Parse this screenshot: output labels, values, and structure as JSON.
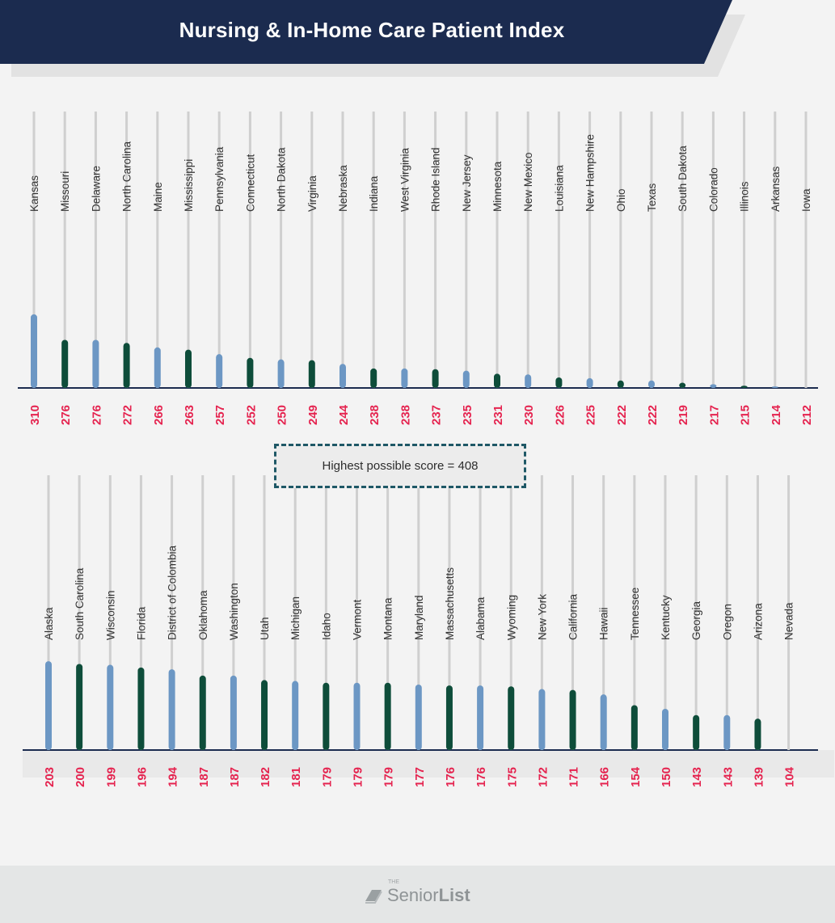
{
  "title": "Nursing & In-Home Care Patient Index",
  "callout": "Highest possible score = 408",
  "brand": {
    "prefix": "THE",
    "name_regular": "Senior",
    "name_bold": "List"
  },
  "colors": {
    "banner": "#1b2b4f",
    "bar_blue": "#6c97c4",
    "bar_green": "#0e4d3a",
    "value_red": "#e5234f",
    "stem": "#cfcfcf"
  },
  "chart_data": [
    {
      "type": "bar",
      "categories": [
        "Kansas",
        "Missouri",
        "Delaware",
        "North Carolina",
        "Maine",
        "Mississippi",
        "Pennsylvania",
        "Connecticut",
        "North Dakota",
        "Virginia",
        "Nebraska",
        "Indiana",
        "West Virginia",
        "Rhode Island",
        "New Jersey",
        "Minnesota",
        "New Mexico",
        "Louisiana",
        "New Hampshire",
        "Ohio",
        "Texas",
        "South Dakota",
        "Colorado",
        "Illinois",
        "Arkansas",
        "Iowa"
      ],
      "values": [
        310,
        276,
        276,
        272,
        266,
        263,
        257,
        252,
        250,
        249,
        244,
        238,
        238,
        237,
        235,
        231,
        230,
        226,
        225,
        222,
        222,
        219,
        217,
        215,
        214,
        212
      ]
    },
    {
      "type": "bar",
      "categories": [
        "Alaska",
        "South Carolina",
        "Wisconsin",
        "Florida",
        "District of Colombia",
        "Oklahoma",
        "Washington",
        "Utah",
        "Michigan",
        "Idaho",
        "Vermont",
        "Montana",
        "Maryland",
        "Massachusetts",
        "Alabama",
        "Wyoming",
        "New York",
        "California",
        "Hawaii",
        "Tennessee",
        "Kentucky",
        "Georgia",
        "Oregon",
        "Arizona",
        "Nevada"
      ],
      "values": [
        203,
        200,
        199,
        196,
        194,
        187,
        187,
        182,
        181,
        179,
        179,
        179,
        177,
        176,
        176,
        175,
        172,
        171,
        166,
        154,
        150,
        143,
        143,
        139,
        104
      ]
    }
  ]
}
